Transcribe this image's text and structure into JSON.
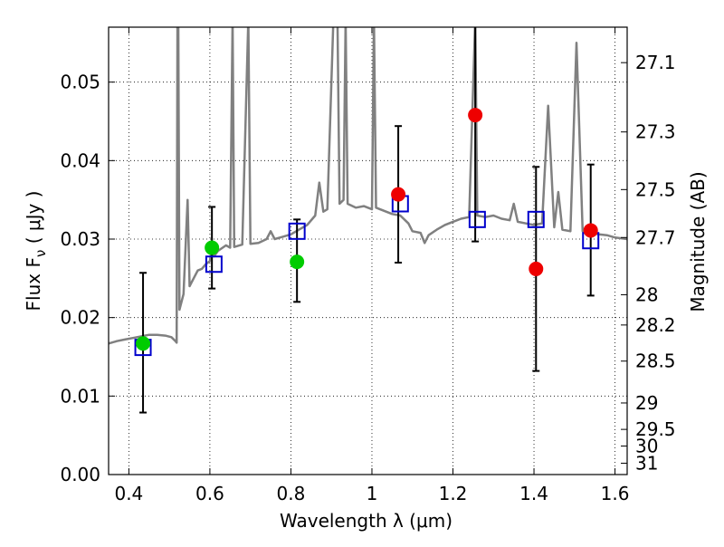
{
  "chart_data": {
    "type": "scatter",
    "xlabel": "Wavelength  λ (μm)",
    "ylabel_left": "Flux  F",
    "ylabel_left_sub": "ν",
    "ylabel_left_unit": "  ( μJy )",
    "ylabel_right": "Magnitude (AB)",
    "xlim": [
      0.35,
      1.63
    ],
    "ylim": [
      0.0,
      0.057
    ],
    "x_ticks": [
      0.4,
      0.6,
      0.8,
      1.0,
      1.2,
      1.4,
      1.6
    ],
    "x_tick_labels": [
      "0.4",
      "0.6",
      "0.8",
      "1",
      "1.2",
      "1.4",
      "1.6"
    ],
    "y_ticks": [
      0.0,
      0.01,
      0.02,
      0.03,
      0.04,
      0.05
    ],
    "y_tick_labels": [
      "0.00",
      "0.01",
      "0.02",
      "0.03",
      "0.04",
      "0.05"
    ],
    "mag_ticks": [
      27.1,
      27.3,
      27.5,
      27.7,
      28,
      28.2,
      28.5,
      29,
      29.5,
      30,
      31
    ],
    "mag_tick_labels": [
      "27.1",
      "27.3",
      "27.5",
      "27.7",
      "28",
      "28.2",
      "28.5",
      "29",
      "29.5",
      "30",
      "31"
    ],
    "grid": true,
    "colors": {
      "spectrum": "#808080",
      "model": "#0000cc",
      "green": "#00cc00",
      "red": "#ee0000",
      "errorbar": "#000000"
    },
    "spectrum": [
      [
        0.35,
        0.0167
      ],
      [
        0.37,
        0.017
      ],
      [
        0.39,
        0.0172
      ],
      [
        0.41,
        0.0174
      ],
      [
        0.43,
        0.0176
      ],
      [
        0.45,
        0.0178
      ],
      [
        0.47,
        0.0178
      ],
      [
        0.49,
        0.0177
      ],
      [
        0.505,
        0.0175
      ],
      [
        0.515,
        0.017
      ],
      [
        0.518,
        0.0168
      ],
      [
        0.52,
        0.058
      ],
      [
        0.522,
        0.058
      ],
      [
        0.525,
        0.021
      ],
      [
        0.535,
        0.023
      ],
      [
        0.545,
        0.035
      ],
      [
        0.55,
        0.024
      ],
      [
        0.56,
        0.025
      ],
      [
        0.57,
        0.026
      ],
      [
        0.58,
        0.0262
      ],
      [
        0.59,
        0.0268
      ],
      [
        0.6,
        0.0272
      ],
      [
        0.605,
        0.029
      ],
      [
        0.61,
        0.0278
      ],
      [
        0.62,
        0.0285
      ],
      [
        0.64,
        0.0292
      ],
      [
        0.65,
        0.0289
      ],
      [
        0.656,
        0.058
      ],
      [
        0.66,
        0.029
      ],
      [
        0.68,
        0.0293
      ],
      [
        0.695,
        0.058
      ],
      [
        0.7,
        0.0294
      ],
      [
        0.72,
        0.0295
      ],
      [
        0.74,
        0.03
      ],
      [
        0.75,
        0.031
      ],
      [
        0.76,
        0.03
      ],
      [
        0.78,
        0.0303
      ],
      [
        0.8,
        0.0306
      ],
      [
        0.82,
        0.0312
      ],
      [
        0.84,
        0.0318
      ],
      [
        0.86,
        0.033
      ],
      [
        0.87,
        0.0372
      ],
      [
        0.88,
        0.0335
      ],
      [
        0.89,
        0.0338
      ],
      [
        0.905,
        0.058
      ],
      [
        0.915,
        0.058
      ],
      [
        0.92,
        0.0345
      ],
      [
        0.93,
        0.035
      ],
      [
        0.935,
        0.058
      ],
      [
        0.94,
        0.0345
      ],
      [
        0.96,
        0.034
      ],
      [
        0.98,
        0.0342
      ],
      [
        1.0,
        0.0338
      ],
      [
        1.005,
        0.058
      ],
      [
        1.01,
        0.034
      ],
      [
        1.03,
        0.0336
      ],
      [
        1.05,
        0.0332
      ],
      [
        1.07,
        0.033
      ],
      [
        1.09,
        0.032
      ],
      [
        1.1,
        0.031
      ],
      [
        1.12,
        0.0308
      ],
      [
        1.13,
        0.0295
      ],
      [
        1.14,
        0.0305
      ],
      [
        1.16,
        0.0312
      ],
      [
        1.18,
        0.0318
      ],
      [
        1.2,
        0.0322
      ],
      [
        1.22,
        0.0326
      ],
      [
        1.24,
        0.0328
      ],
      [
        1.255,
        0.058
      ],
      [
        1.26,
        0.033
      ],
      [
        1.28,
        0.0328
      ],
      [
        1.3,
        0.033
      ],
      [
        1.32,
        0.0326
      ],
      [
        1.34,
        0.0324
      ],
      [
        1.35,
        0.0345
      ],
      [
        1.36,
        0.0322
      ],
      [
        1.38,
        0.032
      ],
      [
        1.4,
        0.0318
      ],
      [
        1.42,
        0.032
      ],
      [
        1.435,
        0.047
      ],
      [
        1.45,
        0.0315
      ],
      [
        1.46,
        0.036
      ],
      [
        1.47,
        0.0312
      ],
      [
        1.49,
        0.031
      ],
      [
        1.505,
        0.055
      ],
      [
        1.52,
        0.031
      ],
      [
        1.54,
        0.0308
      ],
      [
        1.56,
        0.0306
      ],
      [
        1.58,
        0.0305
      ],
      [
        1.6,
        0.0302
      ],
      [
        1.63,
        0.03
      ]
    ],
    "model_points": [
      {
        "x": 0.435,
        "y": 0.0162
      },
      {
        "x": 0.61,
        "y": 0.0268
      },
      {
        "x": 0.815,
        "y": 0.031
      },
      {
        "x": 1.07,
        "y": 0.0345
      },
      {
        "x": 1.26,
        "y": 0.0325
      },
      {
        "x": 1.405,
        "y": 0.0325
      },
      {
        "x": 1.54,
        "y": 0.0298
      }
    ],
    "green_points": [
      {
        "x": 0.435,
        "y": 0.0167,
        "err_lo": 0.0167,
        "err_hi": 0.0257
      },
      {
        "x": 0.605,
        "y": 0.0289,
        "err_lo": 0.0237,
        "err_hi": 0.0341
      },
      {
        "x": 0.815,
        "y": 0.0271,
        "err_lo": 0.022,
        "err_hi": 0.0325
      }
    ],
    "red_points": [
      {
        "x": 1.065,
        "y": 0.0357,
        "err_lo": 0.027,
        "err_hi": 0.0444
      },
      {
        "x": 1.255,
        "y": 0.0458,
        "err_lo": 0.0297,
        "err_hi": 0.057
      },
      {
        "x": 1.405,
        "y": 0.0262,
        "err_lo": 0.0132,
        "err_hi": 0.0392
      },
      {
        "x": 1.54,
        "y": 0.0311,
        "err_lo": 0.0228,
        "err_hi": 0.0395
      }
    ],
    "extra_errorbars": [
      {
        "x": 0.435,
        "lo": 0.0079,
        "hi": 0.0257
      }
    ]
  }
}
